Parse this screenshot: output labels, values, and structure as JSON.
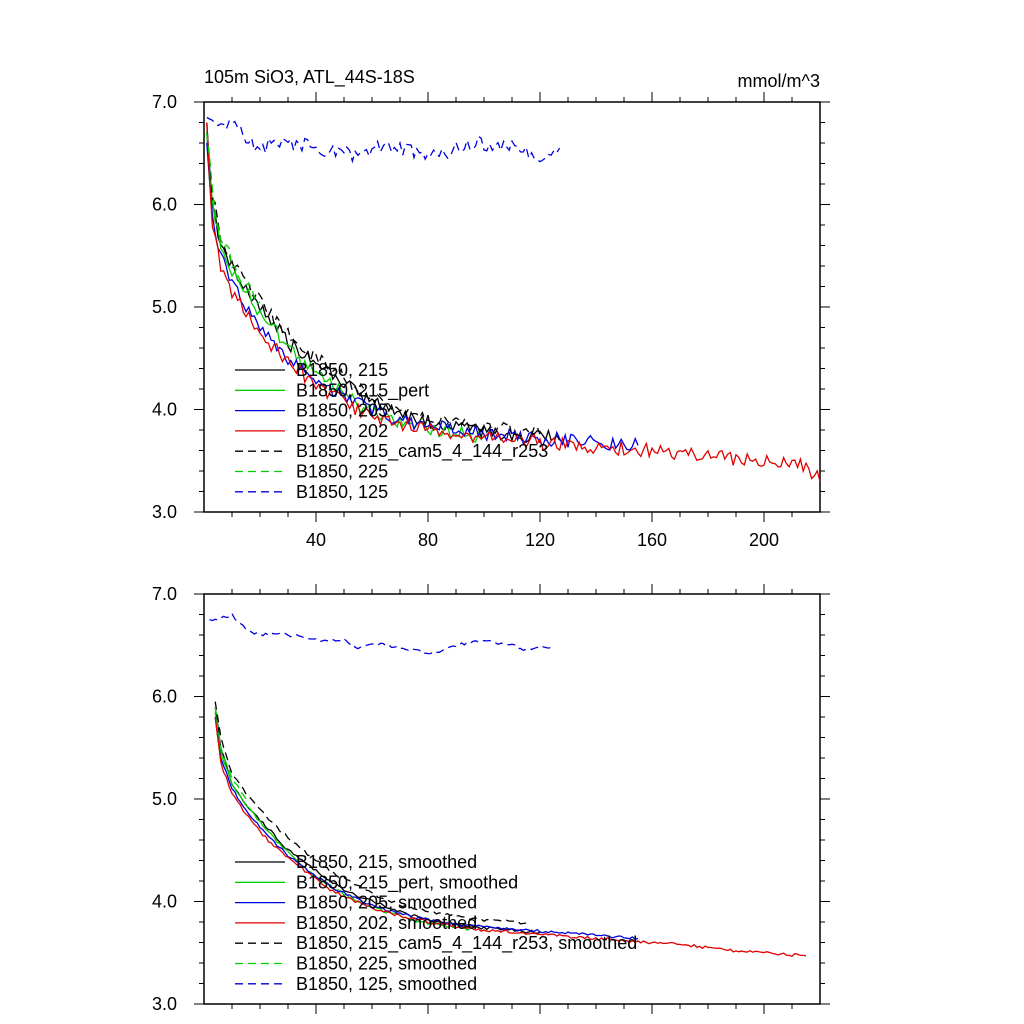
{
  "figure": {
    "title_left": "105m SiO3, ATL_44S-18S",
    "title_right": "mmol/m^3"
  },
  "chart_data": [
    {
      "type": "line",
      "title": "105m SiO3, ATL_44S-18S",
      "units": "mmol/m^3",
      "xlim": [
        0,
        220
      ],
      "ylim": [
        3.0,
        7.0
      ],
      "xticks": [
        40,
        80,
        120,
        160,
        200
      ],
      "yticks": [
        3.0,
        4.0,
        5.0,
        6.0,
        7.0
      ],
      "grid": false,
      "legend": "lower-left",
      "series": [
        {
          "name": "B1850, 215",
          "color": "#000000",
          "dash": "solid",
          "x": [
            1,
            3,
            6,
            10,
            15,
            20,
            25,
            30,
            35,
            40,
            45,
            50,
            55,
            60,
            65,
            70,
            75,
            80,
            85,
            90,
            95,
            100,
            105,
            110,
            115,
            120,
            125,
            127
          ],
          "y": [
            6.8,
            6.0,
            5.6,
            5.4,
            5.15,
            5.0,
            4.85,
            4.65,
            4.55,
            4.45,
            4.35,
            4.25,
            4.15,
            4.08,
            4.02,
            3.97,
            3.92,
            3.88,
            3.84,
            3.82,
            3.8,
            3.78,
            3.76,
            3.75,
            3.74,
            3.73,
            3.72,
            3.7
          ]
        },
        {
          "name": "B1850, 215_pert",
          "color": "#00d000",
          "dash": "solid",
          "x": [
            1,
            3,
            6,
            10,
            15,
            20,
            25,
            30,
            35,
            40,
            45,
            50,
            55,
            60,
            65,
            70,
            75,
            80,
            85,
            90,
            95,
            100
          ],
          "y": [
            6.7,
            6.0,
            5.6,
            5.35,
            5.15,
            4.95,
            4.8,
            4.6,
            4.45,
            4.35,
            4.25,
            4.15,
            4.05,
            3.98,
            3.93,
            3.88,
            3.85,
            3.82,
            3.8,
            3.78,
            3.76,
            3.74
          ]
        },
        {
          "name": "B1850, 205",
          "color": "#0000e0",
          "dash": "solid",
          "x": [
            1,
            3,
            6,
            10,
            15,
            20,
            25,
            30,
            35,
            40,
            45,
            50,
            55,
            60,
            65,
            70,
            75,
            80,
            85,
            90,
            95,
            100,
            105,
            110,
            115,
            120,
            125,
            130,
            135,
            140,
            145,
            150,
            155
          ],
          "y": [
            6.6,
            5.9,
            5.5,
            5.25,
            5.0,
            4.8,
            4.65,
            4.5,
            4.4,
            4.3,
            4.2,
            4.12,
            4.05,
            4.0,
            3.95,
            3.9,
            3.87,
            3.84,
            3.82,
            3.8,
            3.78,
            3.76,
            3.75,
            3.74,
            3.73,
            3.72,
            3.71,
            3.7,
            3.69,
            3.68,
            3.67,
            3.66,
            3.65
          ]
        },
        {
          "name": "B1850, 202",
          "color": "#e00000",
          "dash": "solid",
          "x": [
            1,
            3,
            6,
            10,
            15,
            20,
            25,
            30,
            35,
            40,
            45,
            50,
            55,
            60,
            65,
            70,
            75,
            80,
            85,
            90,
            95,
            100,
            110,
            120,
            130,
            140,
            150,
            160,
            170,
            180,
            190,
            200,
            210,
            215,
            220
          ],
          "y": [
            6.8,
            5.8,
            5.4,
            5.15,
            4.95,
            4.75,
            4.6,
            4.45,
            4.35,
            4.25,
            4.15,
            4.07,
            4.0,
            3.95,
            3.9,
            3.86,
            3.83,
            3.8,
            3.78,
            3.76,
            3.74,
            3.72,
            3.7,
            3.68,
            3.66,
            3.64,
            3.62,
            3.6,
            3.58,
            3.55,
            3.52,
            3.5,
            3.48,
            3.46,
            3.3
          ]
        },
        {
          "name": "B1850, 215_cam5_4_144_r253",
          "color": "#000000",
          "dash": "dash",
          "x": [
            1,
            3,
            6,
            10,
            15,
            20,
            25,
            30,
            35,
            40,
            45,
            50,
            55,
            60,
            65,
            70,
            75,
            80,
            85,
            90,
            95,
            100,
            105,
            110,
            115,
            120
          ],
          "y": [
            6.7,
            6.1,
            5.7,
            5.45,
            5.25,
            5.05,
            4.9,
            4.75,
            4.6,
            4.5,
            4.4,
            4.3,
            4.2,
            4.12,
            4.06,
            4.0,
            3.96,
            3.93,
            3.9,
            3.88,
            3.86,
            3.84,
            3.82,
            3.8,
            3.78,
            3.76
          ]
        },
        {
          "name": "B1850, 225",
          "color": "#00d000",
          "dash": "dash",
          "x": [
            1,
            3,
            6,
            10,
            15,
            20
          ],
          "y": [
            6.7,
            6.1,
            5.7,
            5.45,
            5.2,
            5.05
          ]
        },
        {
          "name": "B1850, 125",
          "color": "#0000e0",
          "dash": "dash",
          "x": [
            1,
            5,
            10,
            15,
            20,
            25,
            30,
            35,
            40,
            45,
            50,
            55,
            60,
            65,
            70,
            75,
            80,
            85,
            90,
            95,
            100,
            105,
            110,
            115,
            120,
            125,
            127
          ],
          "y": [
            6.85,
            6.75,
            6.8,
            6.65,
            6.55,
            6.6,
            6.6,
            6.58,
            6.55,
            6.5,
            6.55,
            6.45,
            6.55,
            6.6,
            6.55,
            6.5,
            6.45,
            6.5,
            6.55,
            6.6,
            6.6,
            6.55,
            6.55,
            6.5,
            6.45,
            6.5,
            6.55
          ]
        }
      ]
    },
    {
      "type": "line",
      "xlim": [
        0,
        220
      ],
      "ylim": [
        3.0,
        7.0
      ],
      "yticks": [
        3.0,
        4.0,
        5.0,
        6.0,
        7.0
      ],
      "grid": false,
      "legend": "lower-left",
      "series": [
        {
          "name": "B1850, 215, smoothed",
          "color": "#000000",
          "dash": "solid",
          "x": [
            4,
            6,
            10,
            15,
            20,
            25,
            30,
            35,
            40,
            45,
            50,
            55,
            60,
            65,
            70,
            75,
            80,
            85,
            90,
            95,
            100,
            105,
            110,
            115,
            120
          ],
          "y": [
            5.9,
            5.5,
            5.15,
            4.95,
            4.8,
            4.65,
            4.5,
            4.4,
            4.3,
            4.2,
            4.12,
            4.05,
            4.0,
            3.95,
            3.9,
            3.86,
            3.82,
            3.8,
            3.78,
            3.76,
            3.74,
            3.73,
            3.72,
            3.71,
            3.7
          ]
        },
        {
          "name": "B1850, 215_pert, smoothed",
          "color": "#00d000",
          "dash": "solid",
          "x": [
            4,
            6,
            10,
            15,
            20,
            25,
            30,
            35,
            40,
            45,
            50,
            55,
            60,
            65,
            70,
            75,
            80,
            85,
            90,
            95
          ],
          "y": [
            5.85,
            5.45,
            5.15,
            4.95,
            4.78,
            4.62,
            4.48,
            4.35,
            4.25,
            4.15,
            4.07,
            4.0,
            3.95,
            3.9,
            3.86,
            3.82,
            3.79,
            3.77,
            3.75,
            3.73
          ]
        },
        {
          "name": "B1850, 205, smoothed",
          "color": "#0000e0",
          "dash": "solid",
          "x": [
            4,
            6,
            10,
            15,
            20,
            25,
            30,
            35,
            40,
            45,
            50,
            55,
            60,
            65,
            70,
            75,
            80,
            85,
            90,
            95,
            100,
            105,
            110,
            115,
            120,
            125,
            130,
            135,
            140,
            145,
            150,
            155
          ],
          "y": [
            5.8,
            5.4,
            5.1,
            4.9,
            4.72,
            4.58,
            4.45,
            4.35,
            4.25,
            4.15,
            4.08,
            4.02,
            3.97,
            3.92,
            3.88,
            3.85,
            3.82,
            3.8,
            3.78,
            3.76,
            3.75,
            3.74,
            3.73,
            3.72,
            3.71,
            3.7,
            3.69,
            3.68,
            3.67,
            3.66,
            3.65,
            3.64
          ]
        },
        {
          "name": "B1850, 202, smoothed",
          "color": "#e00000",
          "dash": "solid",
          "x": [
            4,
            6,
            10,
            15,
            20,
            25,
            30,
            35,
            40,
            45,
            50,
            55,
            60,
            65,
            70,
            75,
            80,
            85,
            90,
            95,
            100,
            110,
            120,
            130,
            140,
            150,
            160,
            170,
            180,
            190,
            200,
            210,
            215
          ],
          "y": [
            5.8,
            5.35,
            5.05,
            4.85,
            4.68,
            4.54,
            4.42,
            4.32,
            4.22,
            4.12,
            4.05,
            3.99,
            3.94,
            3.9,
            3.86,
            3.83,
            3.8,
            3.78,
            3.76,
            3.74,
            3.72,
            3.7,
            3.68,
            3.66,
            3.64,
            3.62,
            3.6,
            3.58,
            3.55,
            3.52,
            3.5,
            3.48,
            3.47
          ]
        },
        {
          "name": "B1850, 215_cam5_4_144_r253, smoothed",
          "color": "#000000",
          "dash": "dash",
          "x": [
            4,
            6,
            10,
            15,
            20,
            25,
            30,
            35,
            40,
            45,
            50,
            55,
            60,
            65,
            70,
            75,
            80,
            85,
            90,
            95,
            100,
            105,
            110,
            115
          ],
          "y": [
            5.95,
            5.6,
            5.25,
            5.05,
            4.9,
            4.75,
            4.62,
            4.5,
            4.4,
            4.3,
            4.22,
            4.15,
            4.08,
            4.02,
            3.97,
            3.93,
            3.9,
            3.88,
            3.86,
            3.84,
            3.82,
            3.81,
            3.8,
            3.79
          ]
        },
        {
          "name": "B1850, 225, smoothed",
          "color": "#00d000",
          "dash": "dash",
          "x": [
            4,
            6,
            10,
            15
          ],
          "y": [
            5.9,
            5.5,
            5.2,
            5.0
          ]
        },
        {
          "name": "B1850, 125, smoothed",
          "color": "#0000e0",
          "dash": "dash",
          "x": [
            2,
            5,
            10,
            15,
            20,
            25,
            30,
            35,
            40,
            45,
            50,
            55,
            60,
            65,
            70,
            75,
            80,
            85,
            90,
            95,
            100,
            105,
            110,
            115,
            120,
            124
          ],
          "y": [
            6.75,
            6.75,
            6.8,
            6.65,
            6.6,
            6.62,
            6.6,
            6.58,
            6.55,
            6.55,
            6.55,
            6.48,
            6.52,
            6.5,
            6.48,
            6.45,
            6.42,
            6.45,
            6.5,
            6.52,
            6.55,
            6.52,
            6.5,
            6.45,
            6.48,
            6.48
          ]
        }
      ]
    }
  ]
}
